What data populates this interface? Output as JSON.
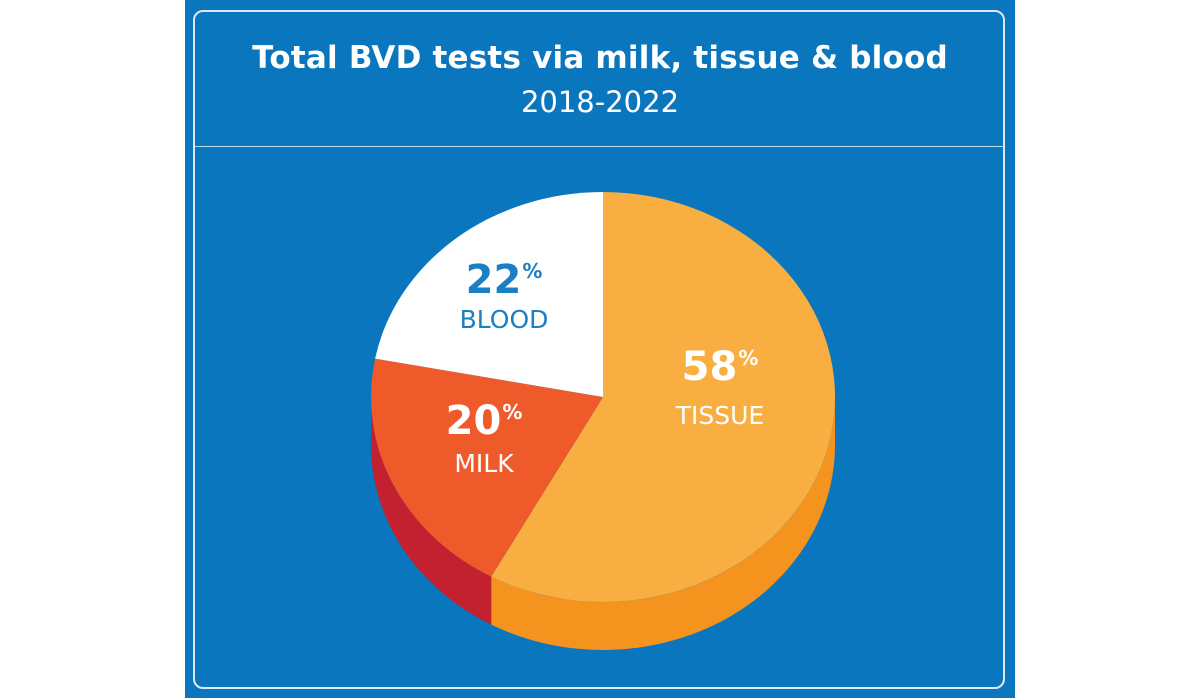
{
  "chart_data": {
    "type": "pie",
    "title": "Total BVD tests via milk, tissue & blood",
    "subtitle": "2018-2022",
    "slices": [
      {
        "label": "TISSUE",
        "value": 58,
        "value_text": "58",
        "unit": "%",
        "color": "#f9ae42",
        "side_color": "#f5931f",
        "text_color": "#ffffff"
      },
      {
        "label": "MILK",
        "value": 20,
        "value_text": "20",
        "unit": "%",
        "color": "#ee5a2a",
        "side_color": "#c42130",
        "text_color": "#ffffff"
      },
      {
        "label": "BLOOD",
        "value": 22,
        "value_text": "22",
        "unit": "%",
        "color": "#ffffff",
        "side_color": "#e6e6e6",
        "text_color": "#1b7fc4"
      }
    ]
  },
  "colors": {
    "background": "#0a76bd",
    "frame": "#ffffff"
  }
}
